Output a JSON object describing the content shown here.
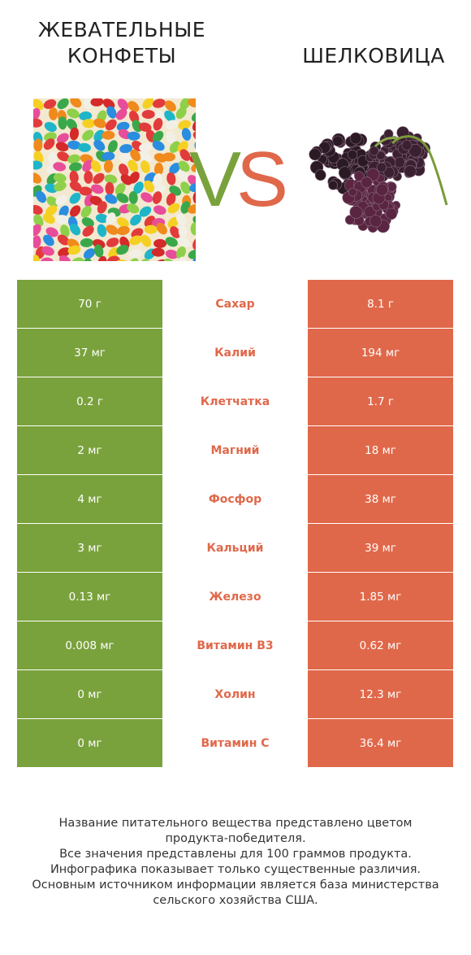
{
  "header": {
    "left_title_lines": [
      "ЖЕВАТЕЛЬНЫЕ",
      "КОНФЕТЫ"
    ],
    "right_title": "ШЕЛКОВИЦА",
    "vs_text": "VS"
  },
  "colors": {
    "left_winner": "#7aa23c",
    "right_winner": "#e0684a",
    "vs_v": "#7aa23c",
    "vs_s": "#e0684a"
  },
  "chart_data": {
    "type": "table",
    "columns": [
      "ЖЕВАТЕЛЬНЫЕ КОНФЕТЫ",
      "",
      "ШЕЛКОВИЦА"
    ],
    "rows": [
      {
        "nutrient": "Сахар",
        "left": "70 г",
        "right": "8.1 г",
        "winner": "right"
      },
      {
        "nutrient": "Калий",
        "left": "37 мг",
        "right": "194 мг",
        "winner": "right"
      },
      {
        "nutrient": "Клетчатка",
        "left": "0.2 г",
        "right": "1.7 г",
        "winner": "right"
      },
      {
        "nutrient": "Магний",
        "left": "2 мг",
        "right": "18 мг",
        "winner": "right"
      },
      {
        "nutrient": "Фосфор",
        "left": "4 мг",
        "right": "38 мг",
        "winner": "right"
      },
      {
        "nutrient": "Кальций",
        "left": "3 мг",
        "right": "39 мг",
        "winner": "right"
      },
      {
        "nutrient": "Железо",
        "left": "0.13 мг",
        "right": "1.85 мг",
        "winner": "right"
      },
      {
        "nutrient": "Витамин B3",
        "left": "0.008 мг",
        "right": "0.62 мг",
        "winner": "right"
      },
      {
        "nutrient": "Холин",
        "left": "0 мг",
        "right": "12.3 мг",
        "winner": "right"
      },
      {
        "nutrient": "Витамин C",
        "left": "0 мг",
        "right": "36.4 мг",
        "winner": "right"
      }
    ]
  },
  "footnote": [
    "Название питательного вещества представлено цветом",
    "продукта-победителя.",
    "Все значения представлены для 100 граммов продукта.",
    "Инфографика показывает только существенные различия.",
    "Основным источником информации является база министерства",
    "сельского хозяйства США."
  ]
}
